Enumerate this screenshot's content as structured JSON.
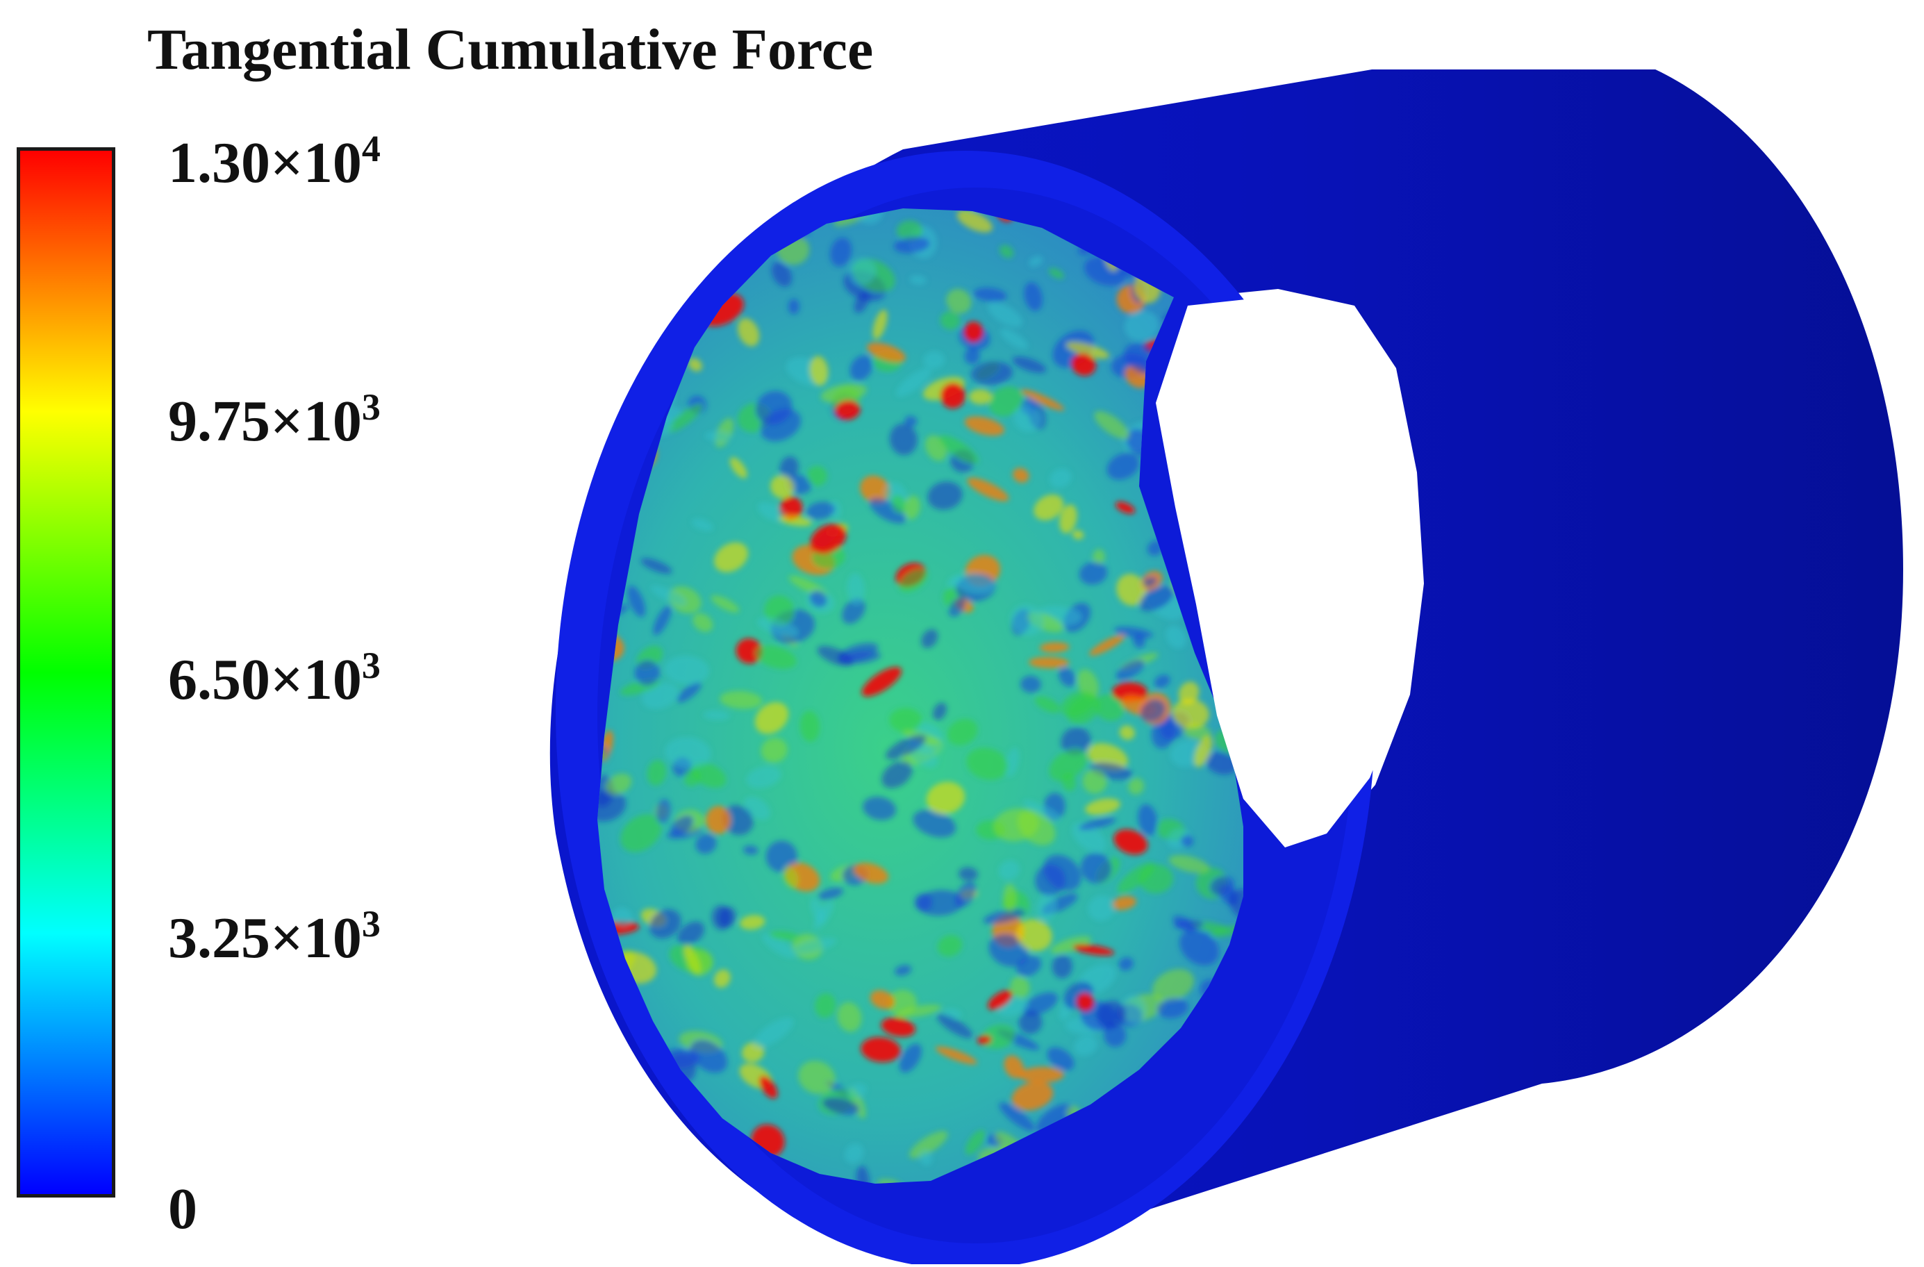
{
  "title": "Tangential Cumulative Force",
  "colorbar": {
    "colors": [
      "#0000ff",
      "#0080ff",
      "#00ffff",
      "#00ff80",
      "#00ff00",
      "#80ff00",
      "#ffff00",
      "#ff8000",
      "#ff0000"
    ],
    "ticks": [
      {
        "mantissa": "1.30×10",
        "exp": "4"
      },
      {
        "mantissa": "9.75×10",
        "exp": "3"
      },
      {
        "mantissa": "6.50×10",
        "exp": "3"
      },
      {
        "mantissa": "3.25×10",
        "exp": "3"
      },
      {
        "mantissa": "0",
        "exp": ""
      }
    ]
  },
  "model": {
    "shell_color": "#0a14c8",
    "shell_dark": "#0612a8",
    "rim_color": "#1020e6"
  }
}
